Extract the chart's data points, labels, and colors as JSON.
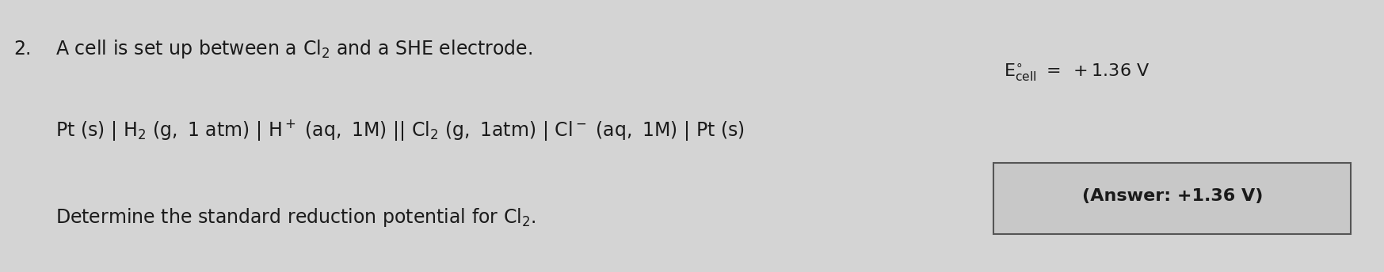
{
  "bg_color": "#d4d4d4",
  "text_color": "#1a1a1a",
  "number": "2.",
  "line1": "$\\mathrm{A\\ cell\\ is\\ set\\ up\\ between\\ a\\ Cl_2\\ and\\ a\\ SHE\\ electrode.}$",
  "line2": "$\\mathrm{Pt\\ (s)\\ |\\ H_2\\ (g,\\ 1\\ atm)\\ |\\ H^+\\ (aq,\\ 1M)\\ ||\\ Cl_2\\ (g,\\ 1atm)\\ |\\ Cl^-\\ (aq,\\ 1M)\\ |\\ Pt\\ (s)}$",
  "line3": "$\\mathrm{Determine\\ the\\ standard\\ reduction\\ potential\\ for\\ Cl_2.}$",
  "ecell": "$\\mathrm{E^{\\circ}_{cell}\\ =\\ +1.36\\ V}$",
  "answer_text": "(Answer: +1.36 V)",
  "answer_box_facecolor": "#c8c8c8",
  "answer_box_edgecolor": "#555555",
  "fontsize_main": 17,
  "fontsize_ecell": 16,
  "fontsize_answer": 16
}
